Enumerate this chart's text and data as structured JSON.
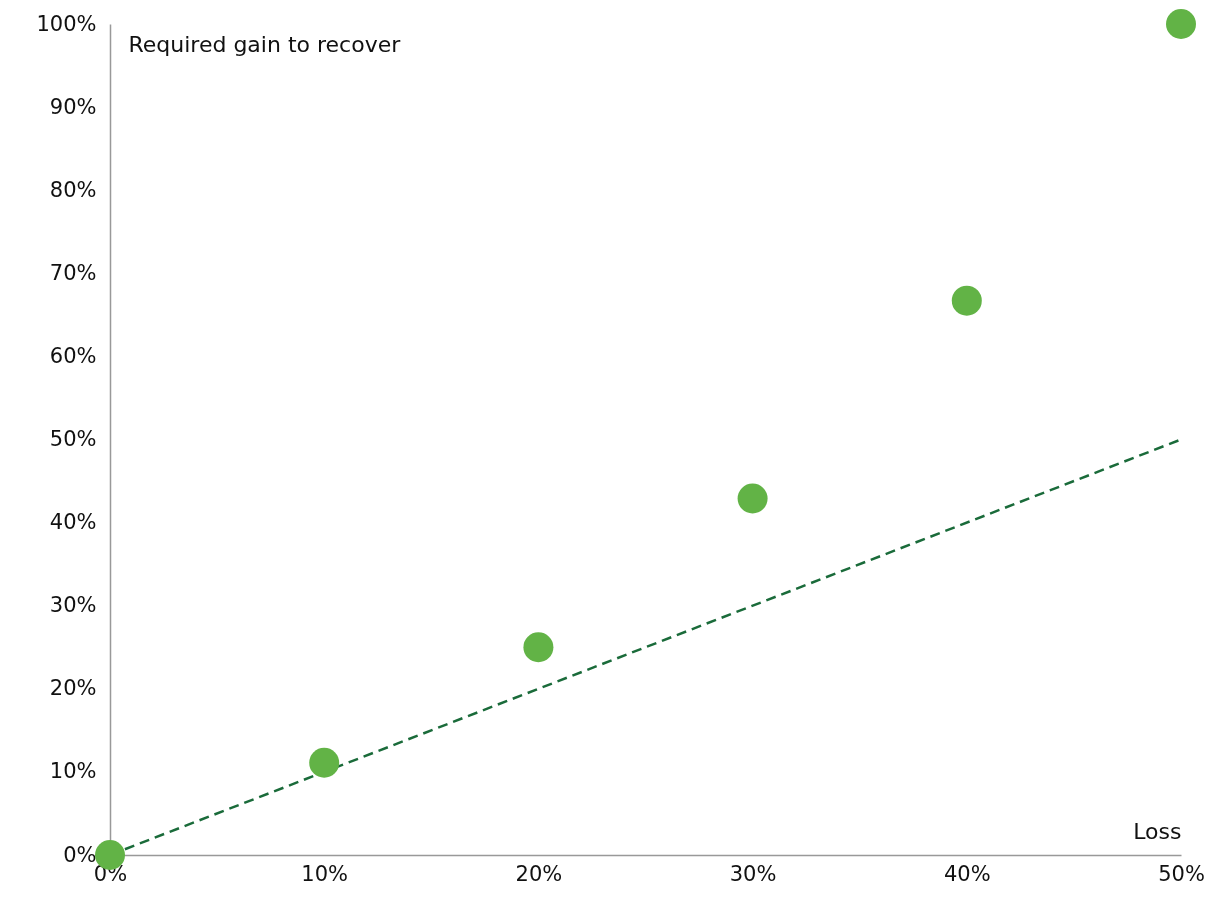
{
  "chart_data": {
    "type": "scatter",
    "xlabel": "Loss",
    "ylabel": "Required gain to recover",
    "x": [
      0,
      10,
      20,
      30,
      40,
      50
    ],
    "series": [
      {
        "type": "line",
        "color": "#1a6b3a",
        "line_style": "dashed",
        "x": [
          0,
          50
        ],
        "values": [
          0,
          50
        ]
      },
      {
        "color": "#62b346",
        "marker": "circle",
        "values": [
          0,
          11.1,
          25,
          42.9,
          66.7,
          100
        ]
      }
    ],
    "xlim": [
      0,
      50
    ],
    "ylim": [
      0,
      100
    ],
    "xticks": [
      {
        "value": 0,
        "label": "0%"
      },
      {
        "value": 10,
        "label": "10%"
      },
      {
        "value": 20,
        "label": "20%"
      },
      {
        "value": 30,
        "label": "30%"
      },
      {
        "value": 40,
        "label": "40%"
      },
      {
        "value": 50,
        "label": "50%"
      }
    ],
    "yticks": [
      {
        "value": 0,
        "label": "0%"
      },
      {
        "value": 10,
        "label": "10%"
      },
      {
        "value": 20,
        "label": "20%"
      },
      {
        "value": 30,
        "label": "30%"
      },
      {
        "value": 40,
        "label": "40%"
      },
      {
        "value": 50,
        "label": "50%"
      },
      {
        "value": 60,
        "label": "60%"
      },
      {
        "value": 70,
        "label": "70%"
      },
      {
        "value": 80,
        "label": "80%"
      },
      {
        "value": 90,
        "label": "90%"
      },
      {
        "value": 100,
        "label": "100%"
      }
    ],
    "grid": false
  }
}
